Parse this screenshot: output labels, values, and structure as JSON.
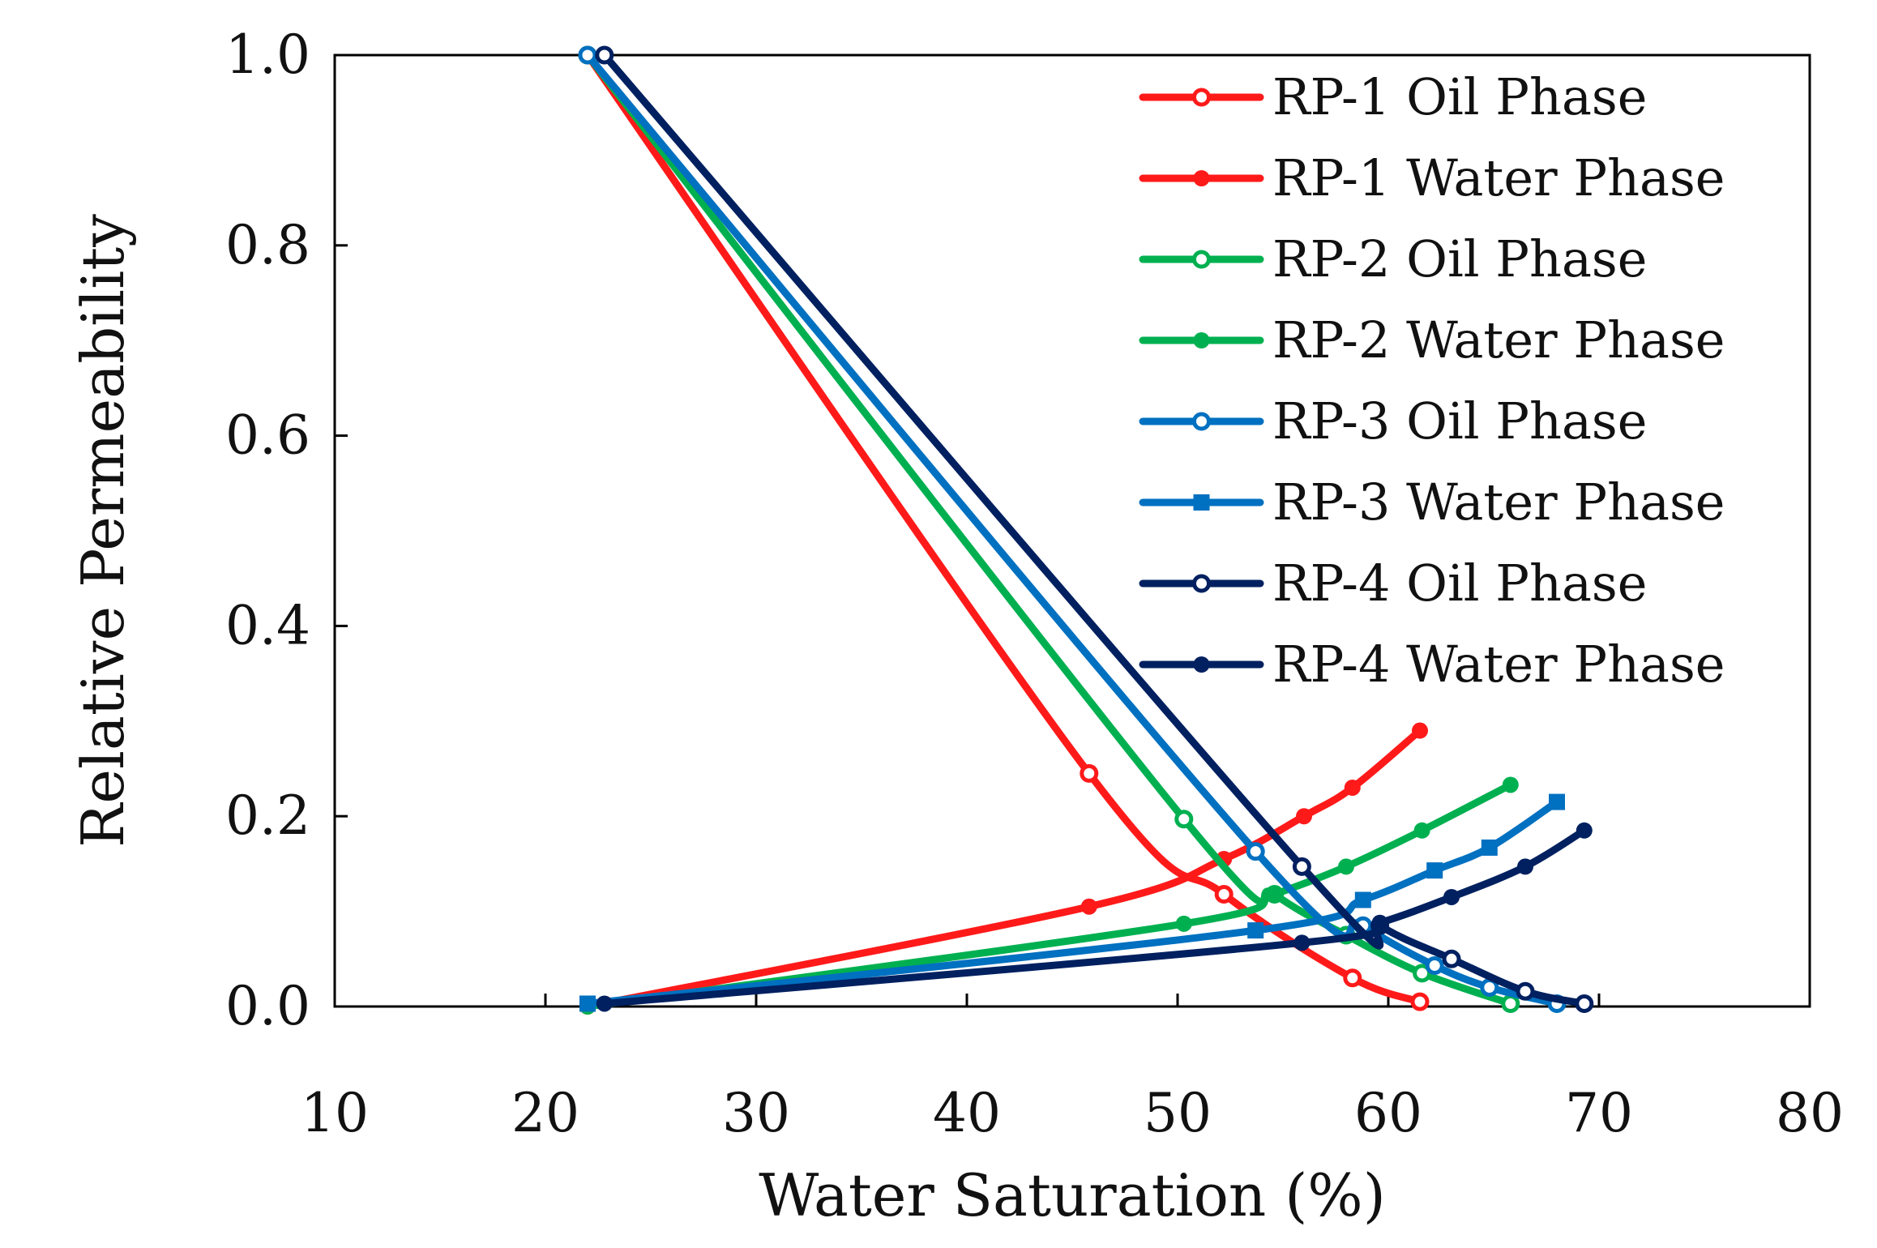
{
  "chart_data": {
    "type": "line",
    "title": "",
    "xlabel": "Water Saturation (%)",
    "ylabel": "Relative Permeability",
    "xlim": [
      10,
      80
    ],
    "ylim": [
      0,
      1
    ],
    "xticks": [
      10,
      20,
      30,
      40,
      50,
      60,
      70,
      80
    ],
    "yticks": [
      0.0,
      0.2,
      0.4,
      0.6,
      0.8,
      1.0
    ],
    "xtick_labels": [
      "10",
      "20",
      "30",
      "40",
      "50",
      "60",
      "70",
      "80"
    ],
    "ytick_labels": [
      "0.0",
      "0.2",
      "0.4",
      "0.6",
      "0.8",
      "1.0"
    ],
    "grid": false,
    "legend_position": "top-right",
    "series": [
      {
        "name": "RP-1 Oil Phase",
        "color": "#ff1a1a",
        "marker": "open-circle",
        "x": [
          22.0,
          45.8,
          52.2,
          58.3,
          61.5
        ],
        "y": [
          1.0,
          0.245,
          0.118,
          0.03,
          0.005
        ]
      },
      {
        "name": "RP-1 Water Phase",
        "color": "#ff1a1a",
        "marker": "filled-circle",
        "x": [
          22.0,
          45.8,
          52.2,
          56.0,
          58.3,
          61.5
        ],
        "y": [
          0.0,
          0.105,
          0.155,
          0.2,
          0.23,
          0.29
        ]
      },
      {
        "name": "RP-2 Oil Phase",
        "color": "#00b050",
        "marker": "open-circle",
        "x": [
          22.0,
          50.3,
          54.6,
          58.0,
          61.6,
          65.8
        ],
        "y": [
          1.0,
          0.197,
          0.118,
          0.075,
          0.035,
          0.003
        ]
      },
      {
        "name": "RP-2 Water Phase",
        "color": "#00b050",
        "marker": "filled-circle",
        "x": [
          22.0,
          50.3,
          54.6,
          58.0,
          61.6,
          65.8
        ],
        "y": [
          0.0,
          0.087,
          0.118,
          0.147,
          0.185,
          0.233
        ]
      },
      {
        "name": "RP-3 Oil Phase",
        "color": "#0070c0",
        "marker": "open-circle",
        "x": [
          22.0,
          53.7,
          58.8,
          62.2,
          64.8,
          68.0
        ],
        "y": [
          1.0,
          0.163,
          0.085,
          0.043,
          0.02,
          0.003
        ]
      },
      {
        "name": "RP-3 Water Phase",
        "color": "#0070c0",
        "marker": "filled-square",
        "x": [
          22.0,
          53.7,
          58.8,
          62.2,
          64.8,
          68.0
        ],
        "y": [
          0.003,
          0.08,
          0.112,
          0.143,
          0.167,
          0.215
        ]
      },
      {
        "name": "RP-4 Oil Phase",
        "color": "#002060",
        "marker": "open-circle",
        "x": [
          22.8,
          55.9,
          59.6,
          63.0,
          66.5,
          69.3
        ],
        "y": [
          1.0,
          0.147,
          0.085,
          0.05,
          0.016,
          0.003
        ]
      },
      {
        "name": "RP-4 Water Phase",
        "color": "#002060",
        "marker": "filled-circle",
        "x": [
          22.8,
          55.9,
          59.6,
          63.0,
          66.5,
          69.3
        ],
        "y": [
          0.003,
          0.067,
          0.088,
          0.115,
          0.147,
          0.185
        ]
      }
    ]
  }
}
